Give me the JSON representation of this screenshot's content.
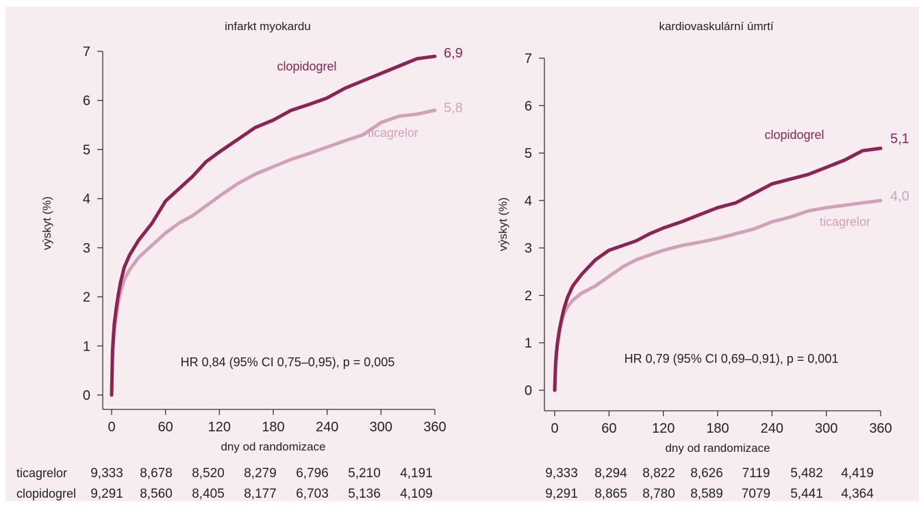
{
  "colors": {
    "background": "#f7edf1",
    "axis": "#333333",
    "text": "#222222",
    "clopidogrel": "#8b2452",
    "ticagrelor": "#d3a0b9"
  },
  "risk_table": {
    "row_labels": [
      "ticagrelor",
      "clopidogrel"
    ]
  },
  "chart_data": [
    {
      "type": "line",
      "title": "infarkt myokardu",
      "xlabel": "dny od randomizace",
      "ylabel": "výskyt (%)",
      "xlim": [
        0,
        360
      ],
      "ylim": [
        0,
        7
      ],
      "x_ticks": [
        0,
        60,
        120,
        180,
        240,
        300,
        360
      ],
      "y_ticks": [
        0,
        1,
        2,
        3,
        4,
        5,
        6,
        7
      ],
      "annotation": "HR 0,84 (95% CI 0,75–0,95), p = 0,005",
      "series": [
        {
          "name": "clopidogrel",
          "end_label": "6,9",
          "x": [
            0,
            1,
            2,
            3,
            5,
            7,
            10,
            14,
            20,
            30,
            45,
            60,
            75,
            90,
            105,
            120,
            140,
            160,
            180,
            200,
            220,
            240,
            260,
            280,
            300,
            320,
            340,
            360
          ],
          "y": [
            0,
            0.9,
            1.2,
            1.45,
            1.75,
            2.0,
            2.3,
            2.6,
            2.85,
            3.15,
            3.5,
            3.95,
            4.2,
            4.45,
            4.75,
            4.95,
            5.2,
            5.45,
            5.6,
            5.8,
            5.92,
            6.05,
            6.25,
            6.4,
            6.55,
            6.7,
            6.85,
            6.9
          ]
        },
        {
          "name": "ticagrelor",
          "end_label": "5,8",
          "x": [
            0,
            1,
            2,
            3,
            5,
            7,
            10,
            14,
            20,
            30,
            45,
            60,
            75,
            90,
            105,
            120,
            140,
            160,
            180,
            200,
            220,
            240,
            260,
            280,
            300,
            320,
            340,
            360
          ],
          "y": [
            0,
            0.8,
            1.05,
            1.3,
            1.6,
            1.85,
            2.1,
            2.35,
            2.55,
            2.8,
            3.05,
            3.3,
            3.5,
            3.65,
            3.85,
            4.05,
            4.3,
            4.5,
            4.65,
            4.8,
            4.92,
            5.05,
            5.18,
            5.3,
            5.55,
            5.68,
            5.72,
            5.8
          ]
        }
      ],
      "at_risk": {
        "ticagrelor": [
          "9,333",
          "8,678",
          "8,520",
          "8,279",
          "6,796",
          "5,210",
          "4,191"
        ],
        "clopidogrel": [
          "9,291",
          "8,560",
          "8,405",
          "8,177",
          "6,703",
          "5,136",
          "4,109"
        ]
      }
    },
    {
      "type": "line",
      "title": "kardiovaskulární úmrtí",
      "xlabel": "dny od randomizace",
      "ylabel": "výskyt (%)",
      "xlim": [
        0,
        360
      ],
      "ylim": [
        0,
        7
      ],
      "x_ticks": [
        0,
        60,
        120,
        180,
        240,
        300,
        360
      ],
      "y_ticks": [
        0,
        1,
        2,
        3,
        4,
        5,
        6,
        7
      ],
      "annotation": "HR 0,79 (95% CI 0,69–0,91), p = 0,001",
      "series": [
        {
          "name": "clopidogrel",
          "end_label": "5,1",
          "x": [
            0,
            1,
            2,
            3,
            5,
            7,
            10,
            14,
            20,
            30,
            45,
            60,
            75,
            90,
            105,
            120,
            140,
            160,
            180,
            200,
            220,
            240,
            260,
            280,
            300,
            320,
            340,
            360
          ],
          "y": [
            0,
            0.55,
            0.8,
            1.0,
            1.25,
            1.45,
            1.7,
            1.95,
            2.2,
            2.45,
            2.75,
            2.95,
            3.05,
            3.15,
            3.3,
            3.42,
            3.55,
            3.7,
            3.85,
            3.95,
            4.15,
            4.35,
            4.45,
            4.55,
            4.7,
            4.85,
            5.05,
            5.1
          ]
        },
        {
          "name": "ticagrelor",
          "end_label": "4,0",
          "x": [
            0,
            1,
            2,
            3,
            5,
            7,
            10,
            14,
            20,
            30,
            45,
            60,
            75,
            90,
            105,
            120,
            140,
            160,
            180,
            200,
            220,
            240,
            260,
            280,
            300,
            320,
            340,
            360
          ],
          "y": [
            0,
            0.5,
            0.75,
            0.95,
            1.2,
            1.4,
            1.6,
            1.75,
            1.9,
            2.05,
            2.2,
            2.4,
            2.6,
            2.75,
            2.85,
            2.95,
            3.05,
            3.12,
            3.2,
            3.3,
            3.4,
            3.55,
            3.65,
            3.78,
            3.85,
            3.9,
            3.95,
            4.0
          ]
        }
      ],
      "at_risk": {
        "ticagrelor": [
          "9,333",
          "8,294",
          "8,822",
          "8,626",
          "7119",
          "5,482",
          "4,419"
        ],
        "clopidogrel": [
          "9,291",
          "8,865",
          "8,780",
          "8,589",
          "7079",
          "5,441",
          "4,364"
        ]
      }
    }
  ]
}
